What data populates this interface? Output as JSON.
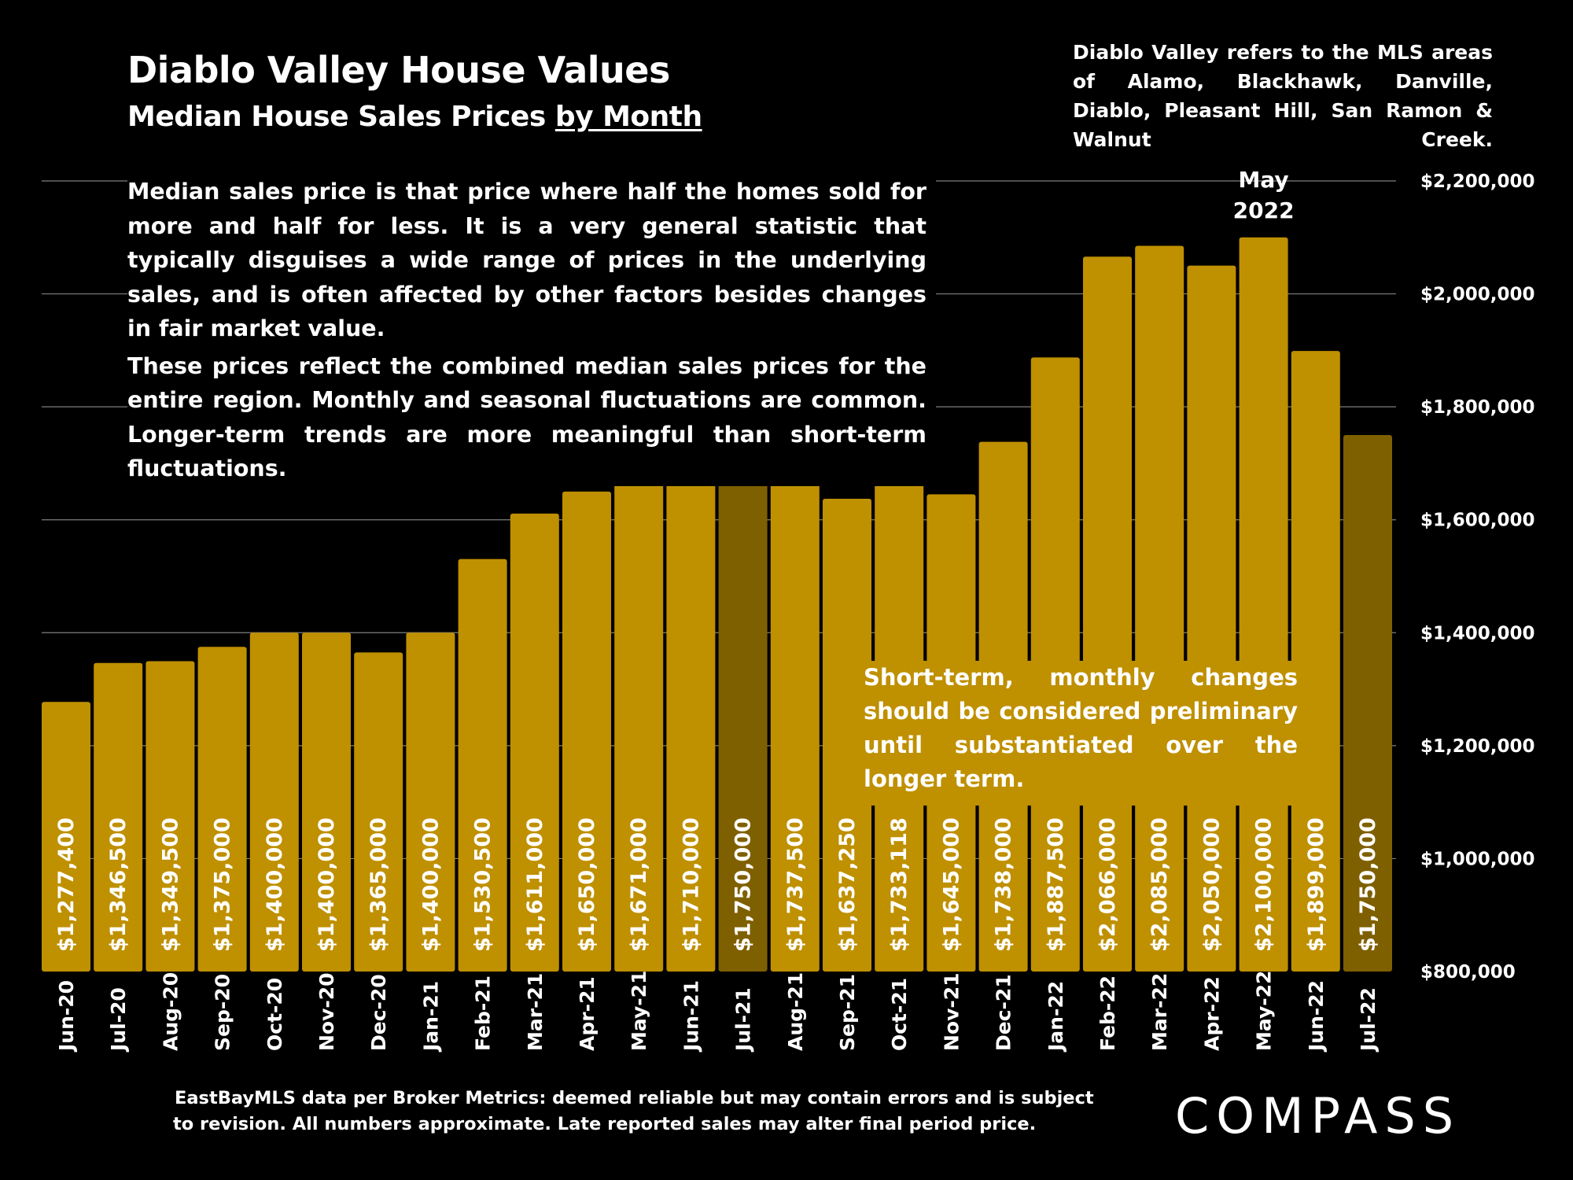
{
  "header": {
    "title": "Diablo Valley House Values",
    "subtitle_prefix": "Median House Sales Prices",
    "subtitle_underlined": "by Month"
  },
  "area_note": "Diablo Valley refers to the MLS areas of Alamo, Blackhawk, Danville, Diablo, Pleasant Hill, San Ramon & Walnut Creek.",
  "explanation": {
    "paragraph1": "Median sales price is that price where half the homes sold for more and half for less. It is a very general statistic that typically disguises a wide range of prices in the underlying sales, and is often affected by other factors besides changes in fair market value.",
    "paragraph2": "These prices reflect the combined median sales prices for the entire region. Monthly and seasonal fluctuations are common. Longer-term trends are more meaningful than short-term fluctuations."
  },
  "short_term_note": "Short-term, monthly changes should be considered preliminary until substantiated over the longer term.",
  "footnote": {
    "line1": "EastBayMLS data per Broker Metrics:  deemed reliable but may contain errors and is subject",
    "line2": "to revision. All numbers approximate. Late reported sales may alter final period price."
  },
  "brand": "COMPASS",
  "colors": {
    "background": "#000000",
    "bar": "#bf9000",
    "bar_highlight": "#7f6000",
    "gridline": "#7f7f7f",
    "text": "#ffffff"
  },
  "chart_data": {
    "type": "bar",
    "categories": [
      "Jun-20",
      "Jul-20",
      "Aug-20",
      "Sep-20",
      "Oct-20",
      "Nov-20",
      "Dec-20",
      "Jan-21",
      "Feb-21",
      "Mar-21",
      "Apr-21",
      "May-21",
      "Jun-21",
      "Jul-21",
      "Aug-21",
      "Sep-21",
      "Oct-21",
      "Nov-21",
      "Dec-21",
      "Jan-22",
      "Feb-22",
      "Mar-22",
      "Apr-22",
      "May-22",
      "Jun-22",
      "Jul-22"
    ],
    "values": [
      1277400,
      1346500,
      1349500,
      1375000,
      1400000,
      1400000,
      1365000,
      1400000,
      1530500,
      1611000,
      1650000,
      1671000,
      1710000,
      1750000,
      1737500,
      1637250,
      1733118,
      1645000,
      1738000,
      1887500,
      2066000,
      2085000,
      2050000,
      2100000,
      1899000,
      1750000
    ],
    "value_labels": [
      "$1,277,400",
      "$1,346,500",
      "$1,349,500",
      "$1,375,000",
      "$1,400,000",
      "$1,400,000",
      "$1,365,000",
      "$1,400,000",
      "$1,530,500",
      "$1,611,000",
      "$1,650,000",
      "$1,671,000",
      "$1,710,000",
      "$1,750,000",
      "$1,737,500",
      "$1,637,250",
      "$1,733,118",
      "$1,645,000",
      "$1,738,000",
      "$1,887,500",
      "$2,066,000",
      "$2,085,000",
      "$2,050,000",
      "$2,100,000",
      "$1,899,000",
      "$1,750,000"
    ],
    "highlighted": [
      "Jul-21",
      "Jul-22"
    ],
    "ylim": [
      800000,
      2200000
    ],
    "yticks": [
      800000,
      1000000,
      1200000,
      1400000,
      1600000,
      1800000,
      2000000,
      2200000
    ],
    "ytick_labels": [
      "$800,000",
      "$1,000,000",
      "$1,200,000",
      "$1,400,000",
      "$1,600,000",
      "$1,800,000",
      "$2,000,000",
      "$2,200,000"
    ],
    "y_axis_side": "right",
    "grid": true,
    "annotation": {
      "category": "May-22",
      "lines": [
        "May",
        "2022"
      ]
    },
    "title": "Diablo Valley House Values",
    "xlabel": "",
    "ylabel": ""
  }
}
